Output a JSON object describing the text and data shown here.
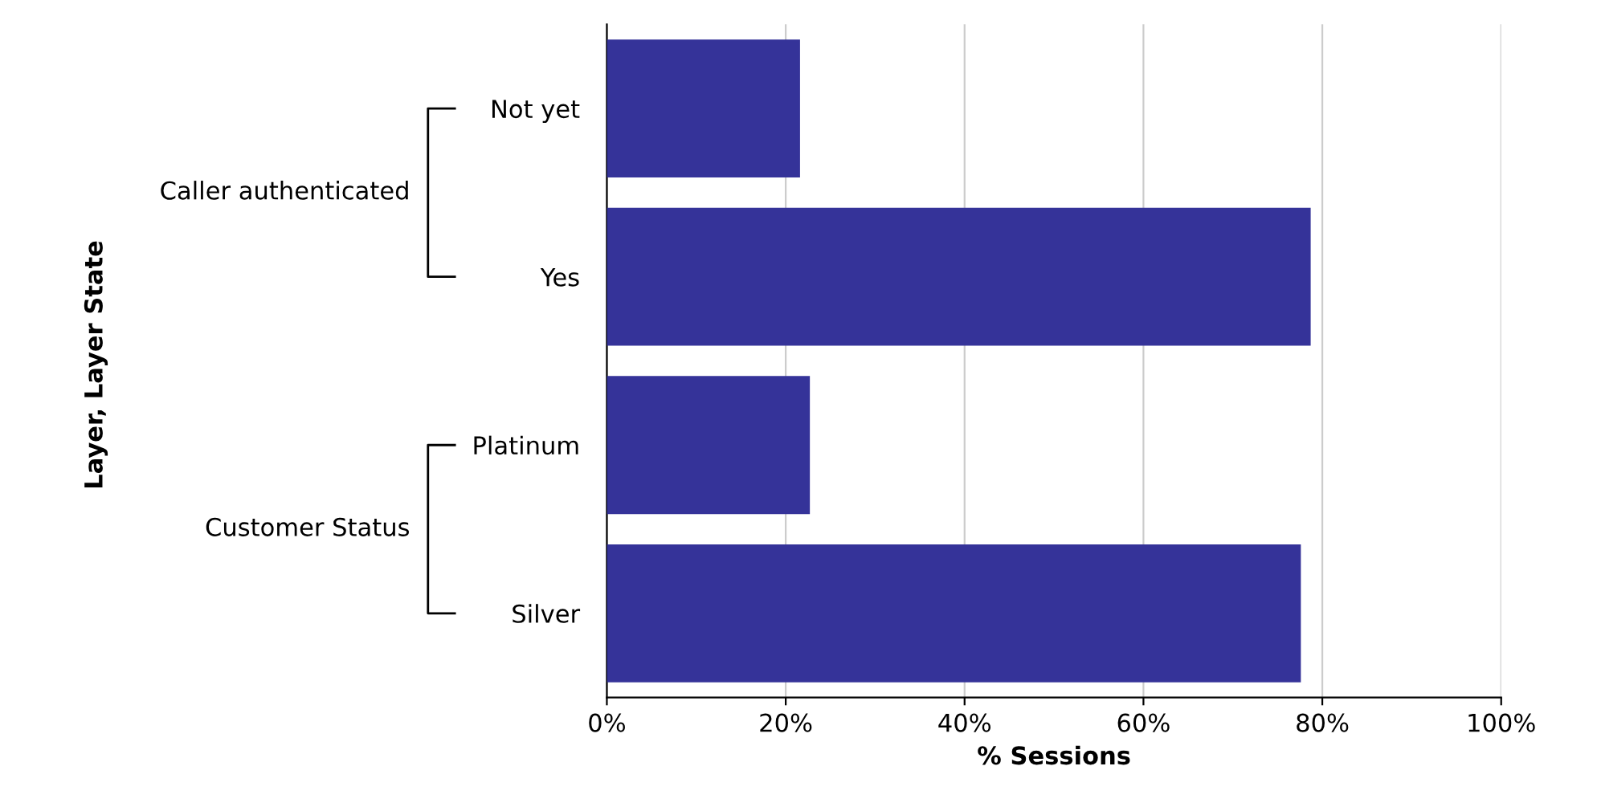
{
  "chart_data": {
    "type": "bar",
    "orientation": "horizontal",
    "xlabel": "% Sessions",
    "categories": [
      "Not yet",
      "Yes",
      "Platinum",
      "Silver"
    ],
    "values": [
      21.6,
      78.7,
      22.7,
      77.6
    ],
    "color": "#353399",
    "xlim": [
      0,
      100
    ],
    "xticks": [
      {
        "value": 0,
        "label": "0%"
      },
      {
        "value": 20,
        "label": "20%"
      },
      {
        "value": 40,
        "label": "40%"
      },
      {
        "value": 60,
        "label": "60%"
      },
      {
        "value": 80,
        "label": "80%"
      },
      {
        "value": 100,
        "label": "100%"
      }
    ],
    "grid": "x",
    "legend": false,
    "annotations": [
      "Layer, Layer State",
      "Caller authenticated",
      "Customer Status"
    ]
  }
}
